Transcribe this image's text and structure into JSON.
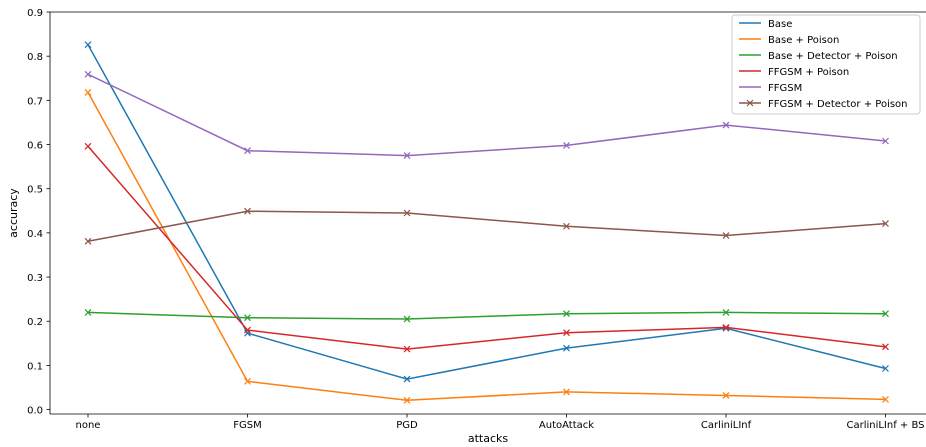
{
  "chart_data": {
    "type": "line",
    "title": "",
    "xlabel": "attacks",
    "ylabel": "accuracy",
    "categories": [
      "none",
      "FGSM",
      "PGD",
      "AutoAttack",
      "CarliniLInf",
      "CarliniLInf + BS"
    ],
    "ylim": [
      -0.01,
      0.9
    ],
    "yticks": [
      "0.0",
      "0.1",
      "0.2",
      "0.3",
      "0.4",
      "0.5",
      "0.6",
      "0.7",
      "0.8",
      "0.9"
    ],
    "grid": false,
    "legend_position": "top-right",
    "series": [
      {
        "name": "Base",
        "color": "#1f77b4",
        "values": [
          0.826,
          0.173,
          0.069,
          0.139,
          0.184,
          0.093
        ]
      },
      {
        "name": "Base + Poison",
        "color": "#ff7f0e",
        "values": [
          0.718,
          0.064,
          0.021,
          0.04,
          0.032,
          0.023
        ]
      },
      {
        "name": "Base + Detector + Poison",
        "color": "#2ca02c",
        "values": [
          0.22,
          0.208,
          0.205,
          0.217,
          0.22,
          0.217
        ]
      },
      {
        "name": "FFGSM + Poison",
        "color": "#d62728",
        "values": [
          0.596,
          0.18,
          0.137,
          0.174,
          0.186,
          0.142
        ]
      },
      {
        "name": "FFGSM",
        "color": "#9467bd",
        "values": [
          0.759,
          0.586,
          0.575,
          0.598,
          0.644,
          0.608
        ]
      },
      {
        "name": "FFGSM + Detector + Poison",
        "color": "#8c564b",
        "values": [
          0.381,
          0.449,
          0.445,
          0.415,
          0.394,
          0.421
        ]
      }
    ]
  }
}
